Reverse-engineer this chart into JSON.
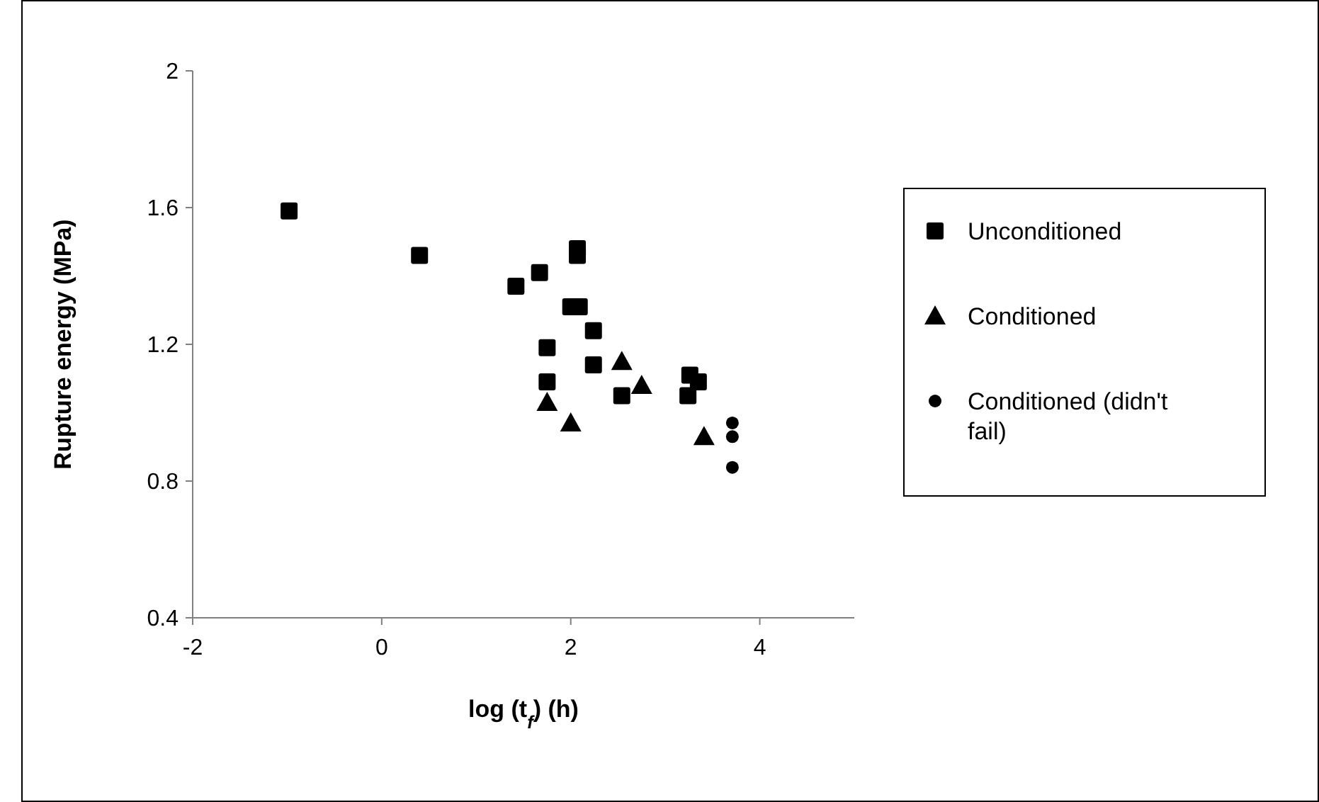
{
  "chart_data": {
    "type": "scatter",
    "xlabel": "log (t$_{f}$) (h)",
    "ylabel": "Rupture energy (MPa)",
    "xlim": [
      -2,
      5
    ],
    "xticks": [
      -2,
      0,
      2,
      4
    ],
    "ylim": [
      0.4,
      2
    ],
    "yticks": [
      0.4,
      0.8,
      1.2,
      1.6,
      2
    ],
    "legend": "right",
    "grid": false,
    "series": [
      {
        "name": "Unconditioned",
        "color": "#000000",
        "marker": "square",
        "x": [
          -0.98,
          0.4,
          1.42,
          1.67,
          2.07,
          2.07,
          2.0,
          2.09,
          2.24,
          1.75,
          2.24,
          1.75,
          2.54,
          3.26,
          3.35,
          3.24
        ],
        "values": [
          1.59,
          1.46,
          1.37,
          1.41,
          1.48,
          1.46,
          1.31,
          1.31,
          1.24,
          1.19,
          1.14,
          1.09,
          1.05,
          1.11,
          1.09,
          1.05
        ]
      },
      {
        "name": "Conditioned",
        "color": "#000000",
        "marker": "triangle",
        "x": [
          1.75,
          2.0,
          2.54,
          2.75,
          3.41
        ],
        "values": [
          1.03,
          0.97,
          1.15,
          1.08,
          0.93
        ]
      },
      {
        "name": "Conditioned (didn't fail)",
        "color": "#000000",
        "marker": "circle",
        "x": [
          3.71,
          3.71,
          3.71
        ],
        "values": [
          0.97,
          0.93,
          0.84
        ]
      }
    ]
  }
}
